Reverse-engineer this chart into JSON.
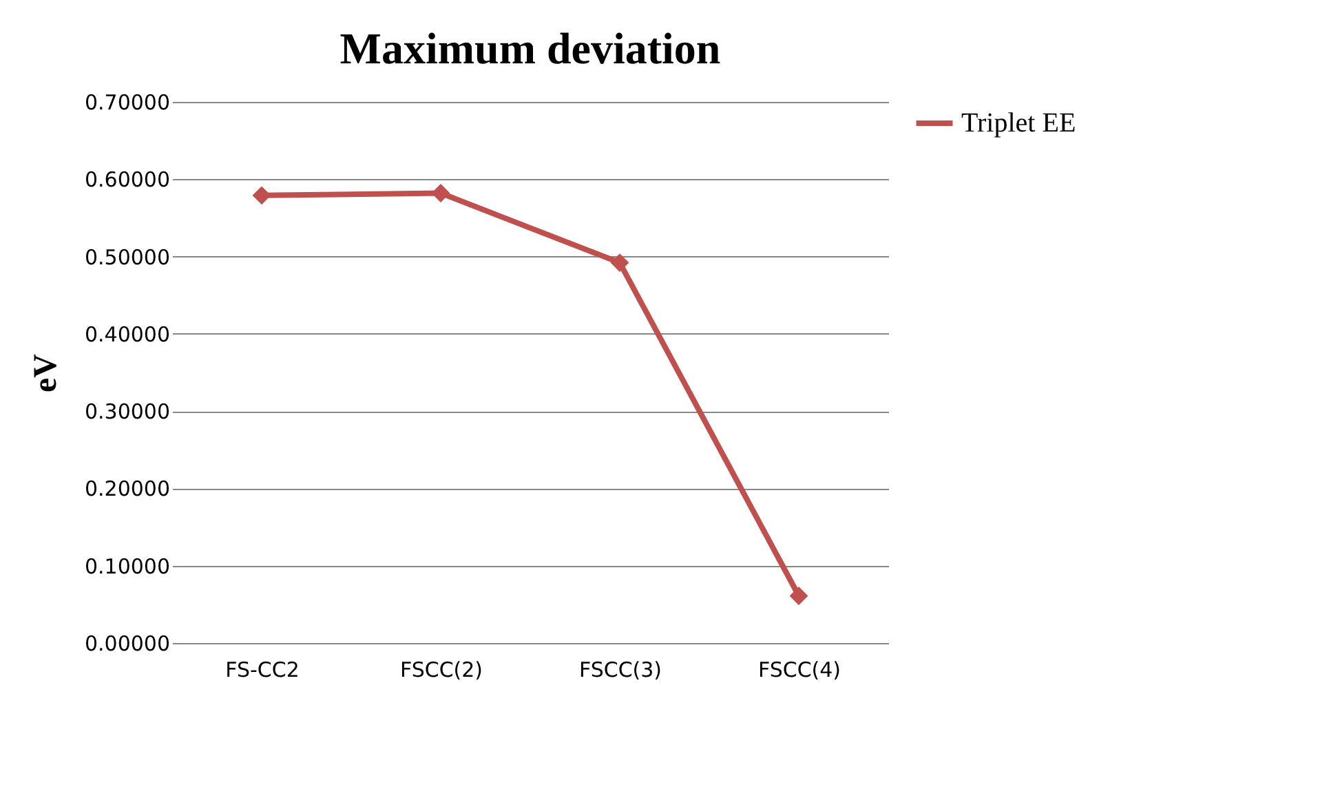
{
  "chart_data": {
    "type": "line",
    "title": "Maximum deviation",
    "ylabel": "eV",
    "categories": [
      "FS-CC2",
      "FSCC(2)",
      "FSCC(3)",
      "FSCC(4)"
    ],
    "series": [
      {
        "name": "Triplet EE",
        "color": "#c0504d",
        "values": [
          0.579,
          0.582,
          0.492,
          0.061
        ]
      }
    ],
    "ylim": [
      0,
      0.7
    ],
    "yticks": [
      {
        "value": 0,
        "label": "0.00000"
      },
      {
        "value": 0.1,
        "label": "0.10000"
      },
      {
        "value": 0.2,
        "label": "0.20000"
      },
      {
        "value": 0.3,
        "label": "0.30000"
      },
      {
        "value": 0.4,
        "label": "0.40000"
      },
      {
        "value": 0.5,
        "label": "0.50000"
      },
      {
        "value": 0.6,
        "label": "0.60000"
      },
      {
        "value": 0.7,
        "label": "0.70000"
      }
    ],
    "grid": "y",
    "legend": "right",
    "marker": "diamond",
    "line_style": "solid"
  }
}
